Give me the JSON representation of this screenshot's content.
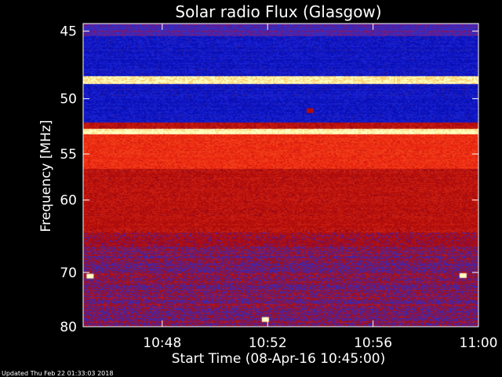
{
  "chart_data": {
    "type": "heatmap",
    "title": "Solar radio Flux (Glasgow)",
    "xlabel": "Start Time (08-Apr-16 10:45:00)",
    "ylabel": "Frequency [MHz]",
    "footer": "Updated Thu Feb 22 01:33:03 2018",
    "x_range_minutes": [
      0,
      15
    ],
    "x_ticks": [
      {
        "label": "10:48",
        "minute": 3
      },
      {
        "label": "10:52",
        "minute": 7
      },
      {
        "label": "10:56",
        "minute": 11
      },
      {
        "label": "11:00",
        "minute": 15
      }
    ],
    "y_range_mhz": [
      44.5,
      80
    ],
    "y_scale": "reciprocal",
    "y_ticks": [
      45,
      50,
      55,
      60,
      70,
      80
    ],
    "frequency_bands": [
      {
        "from": 44.5,
        "to": 45.3,
        "level": "low"
      },
      {
        "from": 45.3,
        "to": 48.2,
        "level": "very-low"
      },
      {
        "from": 48.2,
        "to": 48.8,
        "level": "saturated"
      },
      {
        "from": 48.8,
        "to": 52.0,
        "level": "very-low"
      },
      {
        "from": 52.0,
        "to": 52.6,
        "level": "medium"
      },
      {
        "from": 52.6,
        "to": 53.1,
        "level": "saturated"
      },
      {
        "from": 53.1,
        "to": 56.5,
        "level": "high"
      },
      {
        "from": 56.5,
        "to": 64.0,
        "level": "medium"
      },
      {
        "from": 64.0,
        "to": 66.0,
        "level": "mixed"
      },
      {
        "from": 66.0,
        "to": 80.0,
        "level": "low-mixed"
      }
    ],
    "hot_spots": [
      {
        "minute": 6.9,
        "mhz": 78.5,
        "level": "saturated"
      },
      {
        "minute": 14.4,
        "mhz": 70.5,
        "level": "saturated"
      },
      {
        "minute": 0.25,
        "mhz": 70.6,
        "level": "saturated"
      },
      {
        "minute": 8.6,
        "mhz": 51.0,
        "level": "medium"
      }
    ],
    "colors": {
      "background": "#000000",
      "axis": "#ffffff",
      "very_low": "#0a10b8",
      "low": "#3030c8",
      "medium": "#c01010",
      "high": "#ee2a10",
      "saturated": "#ffffc0"
    }
  }
}
